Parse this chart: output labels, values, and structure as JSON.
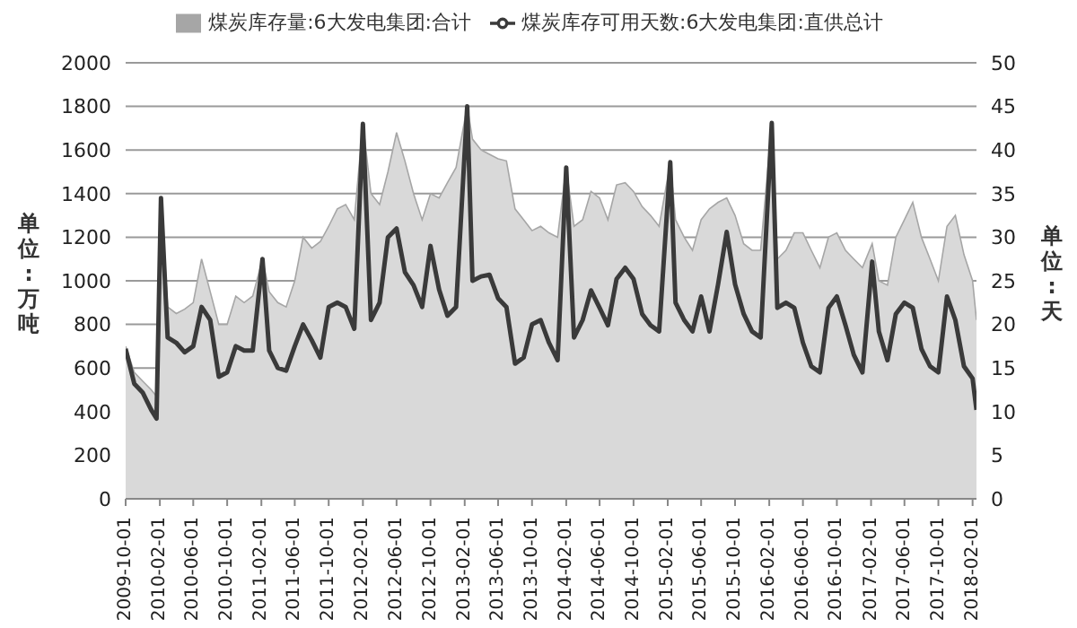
{
  "chart_data": {
    "type": "area",
    "ylabel": "单位:万吨",
    "y2label": "单位:天",
    "x": [
      "2009-10-01",
      "2009-11-01",
      "2009-12-01",
      "2010-01-01",
      "2010-01-20",
      "2010-02-05",
      "2010-03-01",
      "2010-04-01",
      "2010-05-01",
      "2010-06-01",
      "2010-07-01",
      "2010-08-01",
      "2010-09-01",
      "2010-10-01",
      "2010-11-01",
      "2010-12-01",
      "2011-01-01",
      "2011-02-05",
      "2011-03-01",
      "2011-04-01",
      "2011-05-01",
      "2011-06-01",
      "2011-07-01",
      "2011-08-01",
      "2011-09-01",
      "2011-10-01",
      "2011-11-01",
      "2011-12-01",
      "2012-01-01",
      "2012-02-01",
      "2012-03-01",
      "2012-04-01",
      "2012-05-01",
      "2012-06-01",
      "2012-07-01",
      "2012-08-01",
      "2012-09-01",
      "2012-10-01",
      "2012-11-01",
      "2012-12-01",
      "2013-01-01",
      "2013-02-10",
      "2013-03-01",
      "2013-04-01",
      "2013-05-01",
      "2013-06-01",
      "2013-07-01",
      "2013-08-01",
      "2013-09-01",
      "2013-10-01",
      "2013-11-01",
      "2013-12-01",
      "2014-01-01",
      "2014-02-01",
      "2014-03-01",
      "2014-04-01",
      "2014-05-01",
      "2014-06-01",
      "2014-07-01",
      "2014-08-01",
      "2014-09-01",
      "2014-10-01",
      "2014-11-01",
      "2014-12-01",
      "2015-01-01",
      "2015-02-10",
      "2015-03-01",
      "2015-04-01",
      "2015-05-01",
      "2015-06-01",
      "2015-07-01",
      "2015-08-01",
      "2015-09-01",
      "2015-10-01",
      "2015-11-01",
      "2015-12-01",
      "2016-01-01",
      "2016-02-10",
      "2016-03-01",
      "2016-04-01",
      "2016-05-01",
      "2016-06-01",
      "2016-07-01",
      "2016-08-01",
      "2016-09-01",
      "2016-10-01",
      "2016-11-01",
      "2016-12-01",
      "2017-01-01",
      "2017-02-05",
      "2017-03-01",
      "2017-04-01",
      "2017-05-01",
      "2017-06-01",
      "2017-07-01",
      "2017-08-01",
      "2017-09-01",
      "2017-10-01",
      "2017-11-01",
      "2017-12-01",
      "2018-01-01",
      "2018-02-01",
      "2018-02-15"
    ],
    "series": [
      {
        "name": "煤炭库存量:6大发电集团:合计",
        "color": "#d9d9d9",
        "values": [
          700,
          580,
          540,
          500,
          470,
          1380,
          880,
          850,
          870,
          900,
          1100,
          950,
          800,
          800,
          930,
          900,
          930,
          1100,
          950,
          900,
          880,
          1000,
          1200,
          1150,
          1180,
          1250,
          1330,
          1350,
          1280,
          1720,
          1400,
          1350,
          1500,
          1680,
          1550,
          1400,
          1280,
          1400,
          1380,
          1450,
          1520,
          1800,
          1650,
          1600,
          1580,
          1560,
          1550,
          1330,
          1280,
          1230,
          1250,
          1220,
          1200,
          1520,
          1250,
          1280,
          1410,
          1380,
          1280,
          1440,
          1450,
          1410,
          1340,
          1300,
          1250,
          1540,
          1280,
          1200,
          1140,
          1280,
          1330,
          1360,
          1380,
          1300,
          1170,
          1140,
          1140,
          1720,
          1100,
          1140,
          1220,
          1220,
          1140,
          1060,
          1200,
          1220,
          1140,
          1100,
          1060,
          1170,
          1000,
          980,
          1200,
          1280,
          1360,
          1200,
          1100,
          1000,
          1250,
          1300,
          1120,
          1000,
          820
        ]
      },
      {
        "name": "煤炭库存可用天数:6大发电集团:直供总计",
        "type": "line",
        "axis": "y2",
        "color": "#3a3a3a",
        "values": [
          17.2,
          13.2,
          12.2,
          10.2,
          9.2,
          34.5,
          18.5,
          17.9,
          16.8,
          17.5,
          22,
          20.5,
          14,
          14.5,
          17.5,
          17,
          17,
          27.5,
          17,
          15,
          14.7,
          17.5,
          20,
          18.2,
          16.2,
          22,
          22.5,
          22,
          19.5,
          43,
          20.5,
          22.5,
          30,
          31,
          26,
          24.5,
          22,
          29,
          24,
          21,
          22,
          45,
          25,
          25.5,
          25.7,
          23,
          22,
          15.5,
          16.2,
          20,
          20.5,
          17.9,
          15.9,
          38,
          18.5,
          20.5,
          23.9,
          21.9,
          19.9,
          25.2,
          26.5,
          25.2,
          21.2,
          19.9,
          19.2,
          38.6,
          22.5,
          20.5,
          19.2,
          23.2,
          19.2,
          24.6,
          30.6,
          24.6,
          21.2,
          19.2,
          18.5,
          43.1,
          21.9,
          22.5,
          21.9,
          17.9,
          15.2,
          14.5,
          21.9,
          23.2,
          19.9,
          16.5,
          14.5,
          27.2,
          19.2,
          15.9,
          21.2,
          22.5,
          21.9,
          17.2,
          15.2,
          14.5,
          23.2,
          20.5,
          15.2,
          13.8,
          10.2
        ]
      }
    ],
    "xlim": [
      "2009-10-01",
      "2018-02-15"
    ],
    "xticks": [
      "2009-10-01",
      "2010-02-01",
      "2010-06-01",
      "2010-10-01",
      "2011-02-01",
      "2011-06-01",
      "2011-10-01",
      "2012-02-01",
      "2012-06-01",
      "2012-10-01",
      "2013-02-01",
      "2013-06-01",
      "2013-10-01",
      "2014-02-01",
      "2014-06-01",
      "2014-10-01",
      "2015-02-01",
      "2015-06-01",
      "2015-10-01",
      "2016-02-01",
      "2016-06-01",
      "2016-10-01",
      "2017-02-01",
      "2017-06-01",
      "2017-10-01",
      "2018-02-01"
    ],
    "ylim": [
      0,
      2000
    ],
    "yticks": [
      0,
      200,
      400,
      600,
      800,
      1000,
      1200,
      1400,
      1600,
      1800,
      2000
    ],
    "y2lim": [
      0,
      50
    ],
    "y2ticks": [
      0,
      5,
      10,
      15,
      20,
      25,
      30,
      35,
      40,
      45,
      50
    ],
    "grid": "y",
    "legend": "top"
  }
}
